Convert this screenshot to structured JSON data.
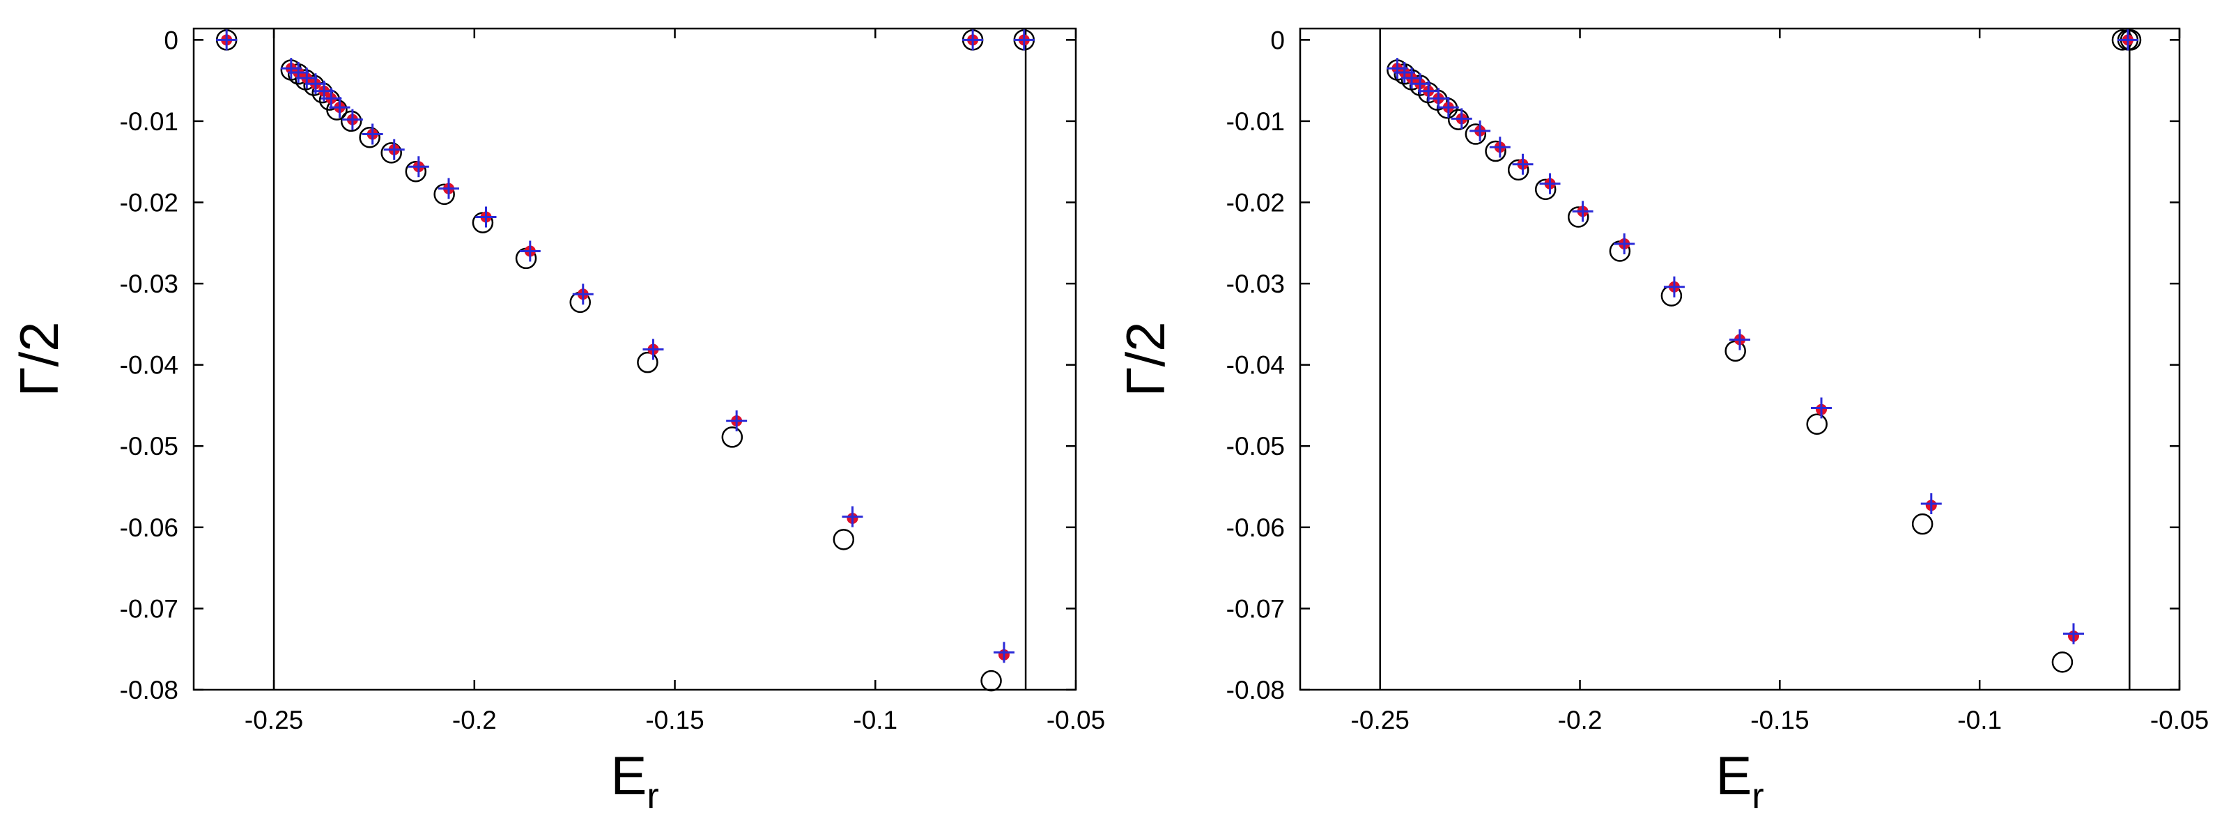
{
  "chart_data": [
    {
      "type": "scatter",
      "xlabel": {
        "text": "E",
        "subscript": "r"
      },
      "ylabel": "Γ/2",
      "xlim": [
        -0.27,
        -0.05
      ],
      "ylim": [
        -0.08,
        0.0014
      ],
      "xticks": [
        -0.25,
        -0.2,
        -0.15,
        -0.1,
        -0.05
      ],
      "yticks": [
        0,
        -0.01,
        -0.02,
        -0.03,
        -0.04,
        -0.05,
        -0.06,
        -0.07,
        -0.08
      ],
      "vlines": [
        -0.25,
        -0.0625
      ],
      "vline_color": "#000000",
      "series": [
        {
          "marker": "circle-open",
          "color": "#000000",
          "x": [
            -0.2618,
            -0.0757,
            -0.0629,
            -0.2457,
            -0.2439,
            -0.2421,
            -0.24,
            -0.2379,
            -0.2361,
            -0.2343,
            -0.2307,
            -0.2261,
            -0.2207,
            -0.2146,
            -0.2075,
            -0.1979,
            -0.1871,
            -0.1736,
            -0.1568,
            -0.1357,
            -0.1079,
            -0.0711
          ],
          "values": [
            0,
            0,
            0,
            -0.0037,
            -0.0042,
            -0.0049,
            -0.0056,
            -0.0065,
            -0.0074,
            -0.0086,
            -0.01,
            -0.012,
            -0.0139,
            -0.0162,
            -0.019,
            -0.0225,
            -0.0269,
            -0.0323,
            -0.0397,
            -0.0489,
            -0.0615,
            -0.0789
          ]
        },
        {
          "marker": "dot",
          "color": "#e0102a",
          "x": [
            -0.2618,
            -0.0757,
            -0.0629,
            -0.2457,
            -0.2439,
            -0.2418,
            -0.2396,
            -0.2375,
            -0.2357,
            -0.2336,
            -0.2304,
            -0.2254,
            -0.22,
            -0.2139,
            -0.2064,
            -0.1971,
            -0.1861,
            -0.1729,
            -0.1554,
            -0.1346,
            -0.1057,
            -0.0679
          ],
          "values": [
            0,
            0,
            0,
            -0.0035,
            -0.004,
            -0.0047,
            -0.0054,
            -0.0063,
            -0.0072,
            -0.0083,
            -0.0098,
            -0.0116,
            -0.0135,
            -0.0156,
            -0.0183,
            -0.0218,
            -0.026,
            -0.0313,
            -0.0381,
            -0.0469,
            -0.0589,
            -0.0757
          ]
        },
        {
          "marker": "plus",
          "color": "#2a2ad8",
          "x": [
            -0.2618,
            -0.0757,
            -0.0629,
            -0.2457,
            -0.2439,
            -0.2418,
            -0.2396,
            -0.2375,
            -0.2357,
            -0.2336,
            -0.2304,
            -0.2254,
            -0.22,
            -0.2139,
            -0.2064,
            -0.1971,
            -0.1861,
            -0.1729,
            -0.1554,
            -0.1346,
            -0.1057,
            -0.0679
          ],
          "values": [
            0,
            0,
            0,
            -0.0035,
            -0.004,
            -0.0047,
            -0.0054,
            -0.0063,
            -0.0072,
            -0.0083,
            -0.0098,
            -0.0116,
            -0.0135,
            -0.0156,
            -0.0183,
            -0.0218,
            -0.026,
            -0.0313,
            -0.0381,
            -0.0469,
            -0.0587,
            -0.0754
          ]
        }
      ]
    },
    {
      "type": "scatter",
      "xlabel": {
        "text": "E",
        "subscript": "r"
      },
      "ylabel": "Γ/2",
      "xlim": [
        -0.27,
        -0.05
      ],
      "ylim": [
        -0.08,
        0.0014
      ],
      "xticks": [
        -0.25,
        -0.2,
        -0.15,
        -0.1,
        -0.05
      ],
      "yticks": [
        0,
        -0.01,
        -0.02,
        -0.03,
        -0.04,
        -0.05,
        -0.06,
        -0.07,
        -0.08
      ],
      "vlines": [
        -0.25,
        -0.0625
      ],
      "vline_color": "#000000",
      "series": [
        {
          "marker": "circle-open",
          "color": "#000000",
          "x": [
            -0.0643,
            -0.0629,
            -0.0622,
            -0.2457,
            -0.2439,
            -0.2421,
            -0.24,
            -0.2379,
            -0.2357,
            -0.2332,
            -0.2304,
            -0.2261,
            -0.2211,
            -0.2154,
            -0.2086,
            -0.2004,
            -0.19,
            -0.1771,
            -0.1611,
            -0.1407,
            -0.1143,
            -0.0793
          ],
          "values": [
            0,
            0,
            0,
            -0.0037,
            -0.0042,
            -0.0049,
            -0.0056,
            -0.0065,
            -0.0074,
            -0.0084,
            -0.0098,
            -0.0116,
            -0.0137,
            -0.016,
            -0.0184,
            -0.0218,
            -0.026,
            -0.0315,
            -0.0383,
            -0.0473,
            -0.0596,
            -0.0766
          ]
        },
        {
          "marker": "dot",
          "color": "#e0102a",
          "x": [
            -0.0629,
            -0.2457,
            -0.2439,
            -0.2421,
            -0.24,
            -0.2379,
            -0.2354,
            -0.2329,
            -0.2296,
            -0.225,
            -0.22,
            -0.2143,
            -0.2075,
            -0.1993,
            -0.1889,
            -0.1764,
            -0.16,
            -0.1396,
            -0.1121,
            -0.0765
          ],
          "values": [
            0,
            -0.0035,
            -0.004,
            -0.0047,
            -0.0054,
            -0.0063,
            -0.0072,
            -0.0083,
            -0.0097,
            -0.0112,
            -0.0132,
            -0.0153,
            -0.0177,
            -0.0211,
            -0.0251,
            -0.0304,
            -0.0369,
            -0.0455,
            -0.0573,
            -0.0734
          ]
        },
        {
          "marker": "plus",
          "color": "#2a2ad8",
          "x": [
            -0.0629,
            -0.2457,
            -0.2439,
            -0.2421,
            -0.24,
            -0.2379,
            -0.2354,
            -0.2329,
            -0.2296,
            -0.225,
            -0.22,
            -0.2143,
            -0.2075,
            -0.1993,
            -0.1889,
            -0.1764,
            -0.16,
            -0.1396,
            -0.1121,
            -0.0765
          ],
          "values": [
            0,
            -0.0035,
            -0.004,
            -0.0047,
            -0.0054,
            -0.0063,
            -0.0072,
            -0.0083,
            -0.0097,
            -0.0112,
            -0.0132,
            -0.0153,
            -0.0177,
            -0.0211,
            -0.0251,
            -0.0304,
            -0.0369,
            -0.0453,
            -0.0571,
            -0.0731
          ]
        }
      ]
    }
  ]
}
